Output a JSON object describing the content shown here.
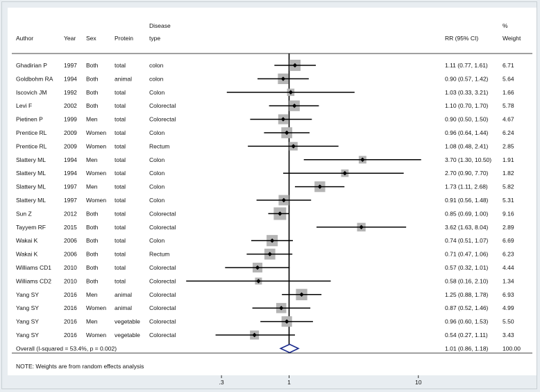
{
  "headers": {
    "author": "Author",
    "year": "Year",
    "sex": "Sex",
    "protein": "Protein",
    "disease_top": "Disease",
    "disease_bottom": "type",
    "rr": "RR (95% CI)",
    "weight_top": "%",
    "weight_bottom": "Weight"
  },
  "note": "NOTE: Weights are from random effects analysis",
  "chart_data": {
    "type": "forest",
    "x_scale": "log",
    "xlim": [
      0.15,
      14
    ],
    "x_ticks": [
      {
        "value": 0.3,
        "label": ".3"
      },
      {
        "value": 1,
        "label": "1"
      },
      {
        "value": 10,
        "label": "10"
      }
    ],
    "null_line": 1,
    "rows": [
      {
        "author": "Ghadirian P",
        "year": "1997",
        "sex": "Both",
        "protein": "total",
        "disease": "colon",
        "rr": 1.11,
        "lo": 0.77,
        "hi": 1.61,
        "label": "1.11 (0.77, 1.61)",
        "weight": 6.71,
        "weight_label": "6.71"
      },
      {
        "author": "Goldbohm RA",
        "year": "1994",
        "sex": "Both",
        "protein": "animal",
        "disease": "colon",
        "rr": 0.9,
        "lo": 0.57,
        "hi": 1.42,
        "label": "0.90 (0.57, 1.42)",
        "weight": 5.64,
        "weight_label": "5.64"
      },
      {
        "author": "Iscovich JM",
        "year": "1992",
        "sex": "Both",
        "protein": "total",
        "disease": "Colon",
        "rr": 1.03,
        "lo": 0.33,
        "hi": 3.21,
        "label": "1.03 (0.33, 3.21)",
        "weight": 1.66,
        "weight_label": "1.66"
      },
      {
        "author": "Levi F",
        "year": "2002",
        "sex": "Both",
        "protein": "total",
        "disease": "Colorectal",
        "rr": 1.1,
        "lo": 0.7,
        "hi": 1.7,
        "label": "1.10 (0.70, 1.70)",
        "weight": 5.78,
        "weight_label": "5.78"
      },
      {
        "author": "Pietinen P",
        "year": "1999",
        "sex": "Men",
        "protein": "total",
        "disease": "Colorectal",
        "rr": 0.9,
        "lo": 0.5,
        "hi": 1.5,
        "label": "0.90 (0.50, 1.50)",
        "weight": 4.67,
        "weight_label": "4.67"
      },
      {
        "author": "Prentice RL",
        "year": "2009",
        "sex": "Women",
        "protein": "total",
        "disease": "Colon",
        "rr": 0.96,
        "lo": 0.64,
        "hi": 1.44,
        "label": "0.96 (0.64, 1.44)",
        "weight": 6.24,
        "weight_label": "6.24"
      },
      {
        "author": "Prentice RL",
        "year": "2009",
        "sex": "Women",
        "protein": "total",
        "disease": "Rectum",
        "rr": 1.08,
        "lo": 0.48,
        "hi": 2.41,
        "label": "1.08 (0.48, 2.41)",
        "weight": 2.85,
        "weight_label": "2.85"
      },
      {
        "author": "Slattery ML",
        "year": "1994",
        "sex": "Men",
        "protein": "total",
        "disease": "Colon",
        "rr": 3.7,
        "lo": 1.3,
        "hi": 10.5,
        "label": "3.70 (1.30, 10.50)",
        "weight": 1.91,
        "weight_label": "1.91"
      },
      {
        "author": "Slattery ML",
        "year": "1994",
        "sex": "Women",
        "protein": "total",
        "disease": "Colon",
        "rr": 2.7,
        "lo": 0.9,
        "hi": 7.7,
        "label": "2.70 (0.90, 7.70)",
        "weight": 1.82,
        "weight_label": "1.82"
      },
      {
        "author": "Slattery ML",
        "year": "1997",
        "sex": "Men",
        "protein": "total",
        "disease": "Colon",
        "rr": 1.73,
        "lo": 1.11,
        "hi": 2.68,
        "label": "1.73 (1.11, 2.68)",
        "weight": 5.82,
        "weight_label": "5.82"
      },
      {
        "author": "Slattery ML",
        "year": "1997",
        "sex": "Women",
        "protein": "total",
        "disease": "Colon",
        "rr": 0.91,
        "lo": 0.56,
        "hi": 1.48,
        "label": "0.91 (0.56, 1.48)",
        "weight": 5.31,
        "weight_label": "5.31"
      },
      {
        "author": "Sun Z",
        "year": "2012",
        "sex": "Both",
        "protein": "total",
        "disease": "Colorectal",
        "rr": 0.85,
        "lo": 0.69,
        "hi": 1.0,
        "label": "0.85 (0.69, 1.00)",
        "weight": 9.16,
        "weight_label": "9.16"
      },
      {
        "author": "Tayyem RF",
        "year": "2015",
        "sex": "Both",
        "protein": "total",
        "disease": "Colorectal",
        "rr": 3.62,
        "lo": 1.63,
        "hi": 8.04,
        "label": "3.62 (1.63, 8.04)",
        "weight": 2.89,
        "weight_label": "2.89"
      },
      {
        "author": "Wakai K",
        "year": "2006",
        "sex": "Both",
        "protein": "total",
        "disease": "Colon",
        "rr": 0.74,
        "lo": 0.51,
        "hi": 1.07,
        "label": "0.74 (0.51, 1.07)",
        "weight": 6.69,
        "weight_label": "6.69"
      },
      {
        "author": "Wakai K",
        "year": "2006",
        "sex": "Both",
        "protein": "total",
        "disease": "Rectum",
        "rr": 0.71,
        "lo": 0.47,
        "hi": 1.06,
        "label": "0.71 (0.47, 1.06)",
        "weight": 6.23,
        "weight_label": "6.23"
      },
      {
        "author": "Williams CD1",
        "year": "2010",
        "sex": "Both",
        "protein": "total",
        "disease": "Colorectal",
        "rr": 0.57,
        "lo": 0.32,
        "hi": 1.01,
        "label": "0.57 (0.32, 1.01)",
        "weight": 4.44,
        "weight_label": "4.44"
      },
      {
        "author": "Williams CD2",
        "year": "2010",
        "sex": "Both",
        "protein": "total",
        "disease": "Colorectal",
        "rr": 0.58,
        "lo": 0.16,
        "hi": 2.1,
        "label": "0.58 (0.16, 2.10)",
        "weight": 1.34,
        "weight_label": "1.34"
      },
      {
        "author": "Yang SY",
        "year": "2016",
        "sex": "Men",
        "protein": "animal",
        "disease": "Colorectal",
        "rr": 1.25,
        "lo": 0.88,
        "hi": 1.78,
        "label": "1.25 (0.88, 1.78)",
        "weight": 6.93,
        "weight_label": "6.93"
      },
      {
        "author": "Yang SY",
        "year": "2016",
        "sex": "Women",
        "protein": "animal",
        "disease": "Colorectal",
        "rr": 0.87,
        "lo": 0.52,
        "hi": 1.46,
        "label": "0.87 (0.52, 1.46)",
        "weight": 4.99,
        "weight_label": "4.99"
      },
      {
        "author": "Yang SY",
        "year": "2016",
        "sex": "Men",
        "protein": "vegetable",
        "disease": "Colorectal",
        "rr": 0.96,
        "lo": 0.6,
        "hi": 1.53,
        "label": "0.96 (0.60, 1.53)",
        "weight": 5.5,
        "weight_label": "5.50"
      },
      {
        "author": "Yang SY",
        "year": "2016",
        "sex": "Women",
        "protein": "vegetable",
        "disease": "Colorectal",
        "rr": 0.54,
        "lo": 0.27,
        "hi": 1.11,
        "label": "0.54 (0.27, 1.11)",
        "weight": 3.43,
        "weight_label": "3.43"
      }
    ],
    "overall": {
      "text": "Overall  (I-squared = 53.4%, p = 0.002)",
      "rr": 1.01,
      "lo": 0.86,
      "hi": 1.18,
      "label": "1.01 (0.86, 1.18)",
      "weight_label": "100.00"
    },
    "colors": {
      "box": "#b4b4b4",
      "ci": "#000000",
      "point": "#000000",
      "diamond": "#1a2a8c",
      "null_line": "#000000"
    }
  }
}
